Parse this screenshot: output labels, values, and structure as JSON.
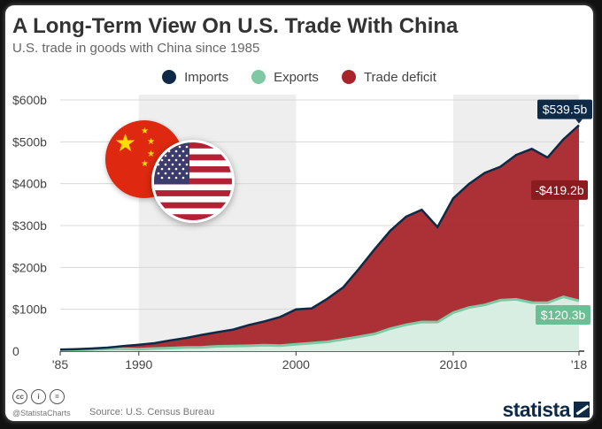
{
  "title": "A Long-Term View On U.S. Trade With China",
  "subtitle": "U.S. trade in goods with China since 1985",
  "footer": {
    "handle": "@StatistaCharts",
    "source": "Source: U.S. Census Bureau",
    "brand": "statista",
    "cc_icons": [
      "cc",
      "i",
      "="
    ]
  },
  "colors": {
    "imports": "#0e2a47",
    "exports": "#7fc8a3",
    "deficit": "#a8262b",
    "shade": "#eeeeee"
  },
  "chart_data": {
    "type": "area",
    "legend": [
      "Imports",
      "Exports",
      "Trade deficit"
    ],
    "legend_position": "top-center",
    "x_ticks": [
      "'85",
      "1990",
      "2000",
      "2010",
      "'18"
    ],
    "y_ticks": [
      "$600b",
      "$500b",
      "$400b",
      "$300b",
      "$200b",
      "$100b",
      "0"
    ],
    "ylim": [
      0,
      600
    ],
    "xlim": [
      1985,
      2018
    ],
    "shaded_decades": [
      [
        1990,
        2000
      ],
      [
        2010,
        2018
      ]
    ],
    "years": [
      1985,
      1986,
      1987,
      1988,
      1989,
      1990,
      1991,
      1992,
      1993,
      1994,
      1995,
      1996,
      1997,
      1998,
      1999,
      2000,
      2001,
      2002,
      2003,
      2004,
      2005,
      2006,
      2007,
      2008,
      2009,
      2010,
      2011,
      2012,
      2013,
      2014,
      2015,
      2016,
      2017,
      2018
    ],
    "imports": [
      3.9,
      4.8,
      6.3,
      8.5,
      12.0,
      15.2,
      19.0,
      25.7,
      31.5,
      38.8,
      45.5,
      51.5,
      62.6,
      71.2,
      81.8,
      100.0,
      102.3,
      125.2,
      152.4,
      196.7,
      243.5,
      287.8,
      321.4,
      337.8,
      296.4,
      364.9,
      399.4,
      425.6,
      440.4,
      468.5,
      483.2,
      462.4,
      505.5,
      539.5
    ],
    "exports": [
      3.9,
      3.1,
      3.5,
      5.0,
      5.8,
      4.8,
      6.3,
      7.4,
      8.8,
      9.3,
      11.7,
      12.0,
      12.9,
      14.2,
      13.1,
      16.2,
      19.2,
      22.1,
      28.4,
      34.4,
      41.2,
      53.7,
      62.9,
      69.7,
      69.5,
      91.9,
      104.1,
      110.5,
      121.7,
      123.7,
      115.9,
      115.6,
      129.8,
      120.3
    ],
    "deficit": [
      0.0,
      1.7,
      2.8,
      3.5,
      6.2,
      10.4,
      12.7,
      18.3,
      22.7,
      29.5,
      33.8,
      39.5,
      49.7,
      57.0,
      68.7,
      83.8,
      83.1,
      103.1,
      124.0,
      162.3,
      202.3,
      234.1,
      258.5,
      268.1,
      226.9,
      273.0,
      295.3,
      315.1,
      318.7,
      344.8,
      367.3,
      346.8,
      375.7,
      419.2
    ],
    "annotations": {
      "imports_label": "$539.5b",
      "deficit_label": "-$419.2b",
      "exports_label": "$120.3b"
    }
  }
}
